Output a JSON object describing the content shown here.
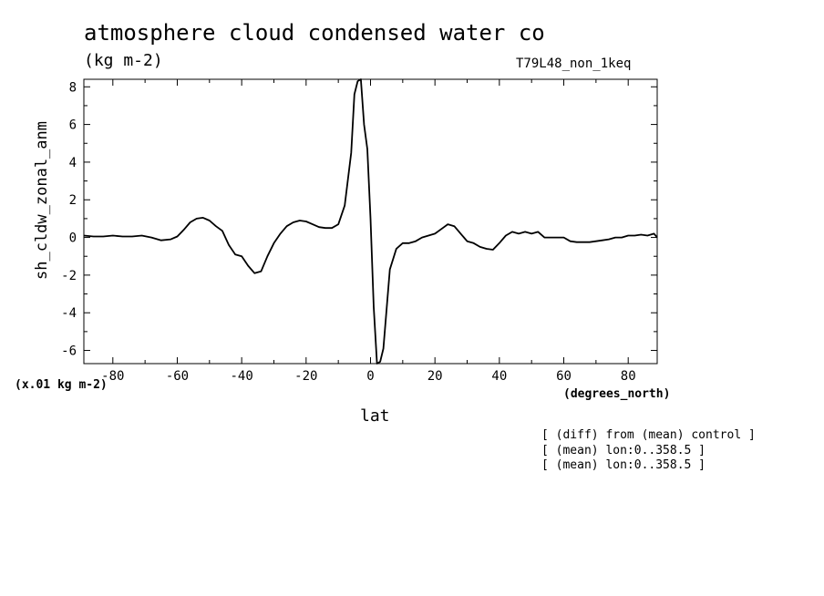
{
  "chart_data": {
    "type": "line",
    "title": "atmosphere cloud condensed water co",
    "units": "(kg m-2)",
    "run_label": "T79L48_non_1keq",
    "ylabel": "sh_cldw_zonal_anm",
    "xlabel": "lat",
    "x_units": "(degrees_north)",
    "y_scale_note": "(x.01 kg m-2)",
    "xlim": [
      -89,
      89
    ],
    "ylim": [
      -6.7,
      8.4
    ],
    "x_ticks": [
      -80,
      -60,
      -40,
      -20,
      0,
      20,
      40,
      60,
      80
    ],
    "x_tick_labels": [
      "-80",
      "-60",
      "-40",
      "-20",
      "0",
      "20",
      "40",
      "60",
      "80"
    ],
    "y_ticks": [
      -6,
      -4,
      -2,
      0,
      2,
      4,
      6,
      8
    ],
    "y_tick_labels": [
      "-6",
      "-4",
      "-2",
      "0",
      "2",
      "4",
      "6",
      "8"
    ],
    "grid": false,
    "line_color": "#000000",
    "series": [
      {
        "x": [
          -89,
          -86,
          -83,
          -80,
          -77,
          -74,
          -71,
          -68,
          -65,
          -62,
          -60,
          -58,
          -56,
          -54,
          -52,
          -50,
          -48,
          -46,
          -44,
          -42,
          -40,
          -38,
          -36,
          -34,
          -32,
          -30,
          -28,
          -26,
          -24,
          -22,
          -20,
          -18,
          -16,
          -14,
          -12,
          -10,
          -8,
          -6,
          -5,
          -4,
          -3,
          -2,
          -1,
          0,
          1,
          2,
          3,
          4,
          6,
          8,
          10,
          12,
          14,
          16,
          18,
          20,
          22,
          24,
          26,
          28,
          30,
          32,
          34,
          36,
          38,
          40,
          42,
          44,
          46,
          48,
          50,
          52,
          54,
          56,
          58,
          60,
          62,
          64,
          66,
          68,
          70,
          72,
          74,
          76,
          78,
          80,
          82,
          84,
          86,
          88,
          89
        ],
        "y": [
          0.1,
          0.05,
          0.05,
          0.1,
          0.05,
          0.05,
          0.1,
          0.0,
          -0.15,
          -0.1,
          0.05,
          0.4,
          0.8,
          1.0,
          1.05,
          0.9,
          0.6,
          0.35,
          -0.4,
          -0.9,
          -1.0,
          -1.5,
          -1.9,
          -1.8,
          -1.0,
          -0.3,
          0.2,
          0.6,
          0.8,
          0.9,
          0.85,
          0.7,
          0.55,
          0.5,
          0.5,
          0.7,
          1.7,
          4.5,
          7.6,
          8.3,
          8.4,
          6.0,
          4.7,
          1.0,
          -3.7,
          -6.7,
          -6.6,
          -5.9,
          -1.7,
          -0.6,
          -0.3,
          -0.3,
          -0.2,
          0.0,
          0.1,
          0.2,
          0.45,
          0.7,
          0.6,
          0.2,
          -0.2,
          -0.3,
          -0.5,
          -0.6,
          -0.65,
          -0.3,
          0.1,
          0.3,
          0.2,
          0.3,
          0.2,
          0.3,
          0.0,
          0.0,
          0.0,
          0.0,
          -0.2,
          -0.25,
          -0.25,
          -0.25,
          -0.2,
          -0.15,
          -0.1,
          0.0,
          0.0,
          0.1,
          0.1,
          0.15,
          0.1,
          0.2,
          0.0
        ]
      }
    ]
  },
  "footnotes": [
    "[ (diff) from (mean) control ]",
    "[ (mean) lon:0..358.5 ]",
    "[ (mean) lon:0..358.5 ]"
  ]
}
